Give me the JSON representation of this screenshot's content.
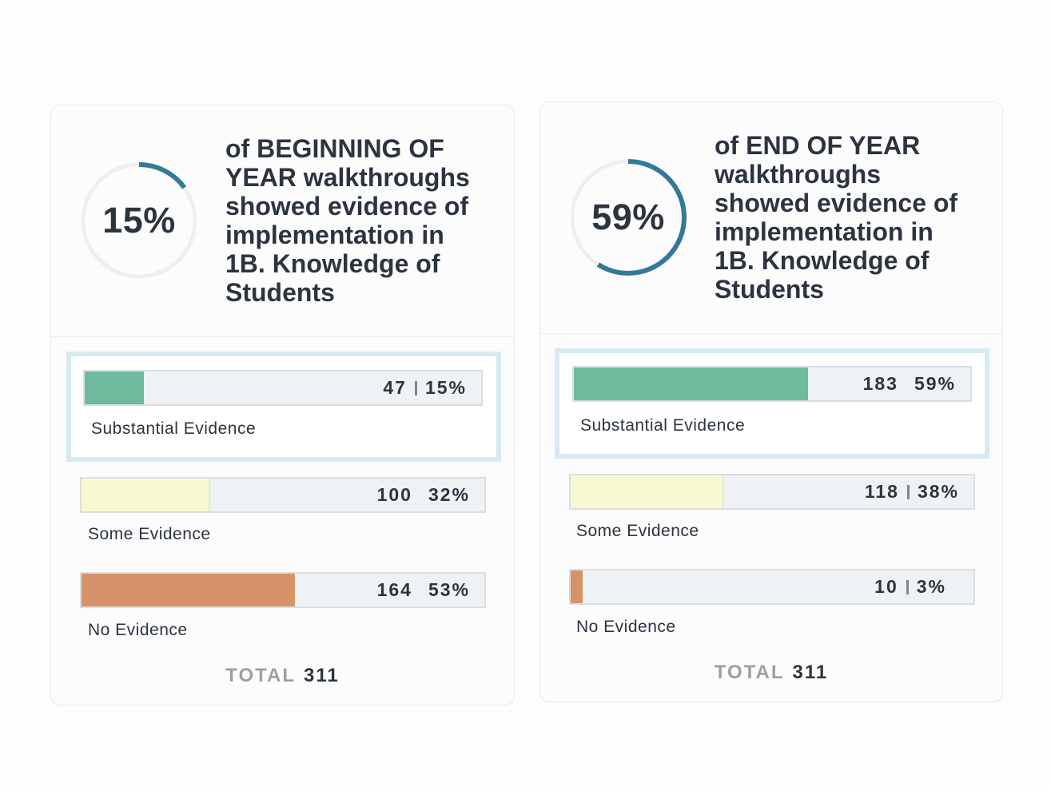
{
  "colors": {
    "donut_arc": "#34789a",
    "donut_track": "#efefef",
    "substantial": "#6fbb9d",
    "some": "#f7f9d2",
    "some_border": "#e5eab5",
    "none": "#d69367",
    "highlight": "#d6eaf1"
  },
  "chart_data": [
    {
      "type": "bar",
      "title": "of BEGINNING OF YEAR walkthroughs showed evidence of implementation in 1B. Knowledge of Students",
      "donut": {
        "value": 15,
        "label": "15%"
      },
      "categories": [
        "Substantial Evidence",
        "Some Evidence",
        "No Evidence"
      ],
      "values": [
        47,
        100,
        164
      ],
      "percents": [
        15,
        32,
        53
      ],
      "percent_labels": [
        "15%",
        "32%",
        "53%"
      ],
      "separators": [
        true,
        false,
        false
      ],
      "highlighted": "Substantial Evidence",
      "total_label": "TOTAL",
      "total": 311
    },
    {
      "type": "bar",
      "title": "of END OF YEAR walkthroughs showed evidence of implementation in 1B. Knowledge of Students",
      "donut": {
        "value": 59,
        "label": "59%"
      },
      "categories": [
        "Substantial Evidence",
        "Some Evidence",
        "No Evidence"
      ],
      "values": [
        183,
        118,
        10
      ],
      "percents": [
        59,
        38,
        3
      ],
      "percent_labels": [
        "59%",
        "38%",
        "3%"
      ],
      "separators": [
        false,
        true,
        true
      ],
      "highlighted": "Substantial Evidence",
      "total_label": "TOTAL",
      "total": 311
    }
  ]
}
